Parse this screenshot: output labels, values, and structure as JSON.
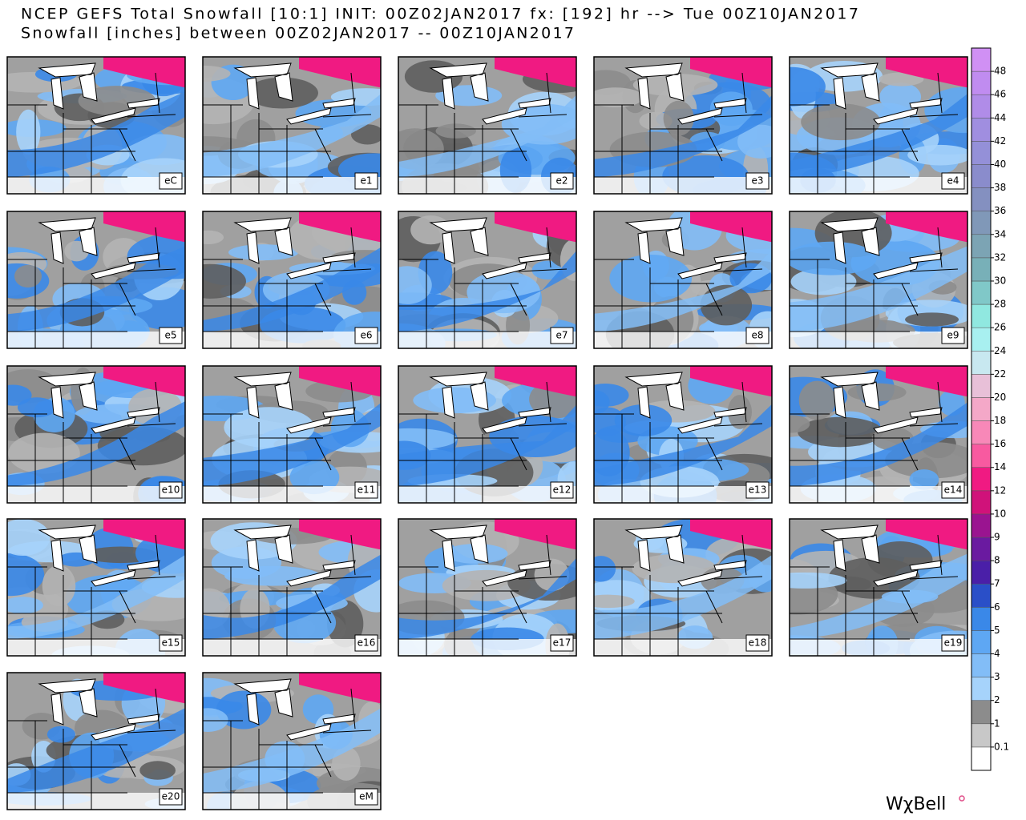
{
  "header": {
    "title": "NCEP GEFS Total Snowfall [10:1] INIT: 00Z02JAN2017 fx: [192] hr --> Tue 00Z10JAN2017",
    "subtitle": "Snowfall [inches] between 00Z02JAN2017 -- 00Z10JAN2017"
  },
  "panels": [
    {
      "label": "eC"
    },
    {
      "label": "e1"
    },
    {
      "label": "e2"
    },
    {
      "label": "e3"
    },
    {
      "label": "e4"
    },
    {
      "label": "e5"
    },
    {
      "label": "e6"
    },
    {
      "label": "e7"
    },
    {
      "label": "e8"
    },
    {
      "label": "e9"
    },
    {
      "label": "e10"
    },
    {
      "label": "e11"
    },
    {
      "label": "e12"
    },
    {
      "label": "e13"
    },
    {
      "label": "e14"
    },
    {
      "label": "e15"
    },
    {
      "label": "e16"
    },
    {
      "label": "e17"
    },
    {
      "label": "e18"
    },
    {
      "label": "e19"
    },
    {
      "label": "e20"
    },
    {
      "label": "eM"
    }
  ],
  "colorbar": {
    "ticks": [
      0.1,
      1,
      2,
      3,
      4,
      5,
      6,
      7,
      8,
      9,
      10,
      12,
      14,
      16,
      18,
      20,
      22,
      24,
      26,
      28,
      30,
      32,
      34,
      36,
      38,
      40,
      42,
      44,
      46,
      48
    ],
    "colors": [
      "#ffffff",
      "#c8c8c8",
      "#8c8c8c",
      "#a6d3fb",
      "#82bdf7",
      "#5ea7f3",
      "#3a88e8",
      "#2a4fc8",
      "#4a1fa8",
      "#6a1aa0",
      "#9a1490",
      "#d0127a",
      "#f01a82",
      "#f85aa0",
      "#f888b8",
      "#f4a8c8",
      "#e8c0d8",
      "#c8e8f0",
      "#a8f0f0",
      "#90e8e0",
      "#80c8c8",
      "#78b0b8",
      "#7ca4b4",
      "#8098b8",
      "#8490c0",
      "#8a8ccc",
      "#9490d8",
      "#a08ee0",
      "#b08ce8",
      "#c08cf0",
      "#d090f4"
    ]
  },
  "logo": "WχBell"
}
